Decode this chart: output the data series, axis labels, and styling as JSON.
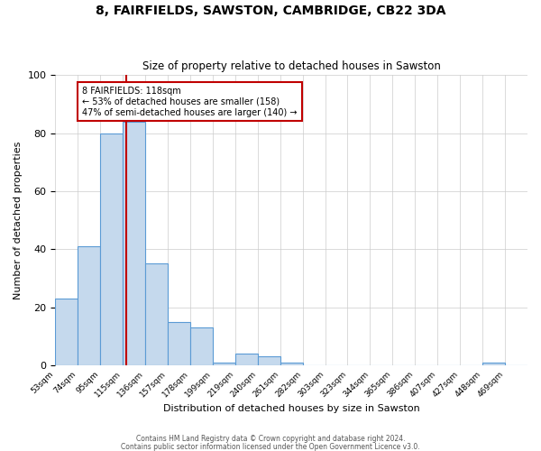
{
  "title": "8, FAIRFIELDS, SAWSTON, CAMBRIDGE, CB22 3DA",
  "subtitle": "Size of property relative to detached houses in Sawston",
  "xlabel": "Distribution of detached houses by size in Sawston",
  "ylabel": "Number of detached properties",
  "footnote1": "Contains HM Land Registry data © Crown copyright and database right 2024.",
  "footnote2": "Contains public sector information licensed under the Open Government Licence v3.0.",
  "bin_labels": [
    "53sqm",
    "74sqm",
    "95sqm",
    "115sqm",
    "136sqm",
    "157sqm",
    "178sqm",
    "199sqm",
    "219sqm",
    "240sqm",
    "261sqm",
    "282sqm",
    "303sqm",
    "323sqm",
    "344sqm",
    "365sqm",
    "386sqm",
    "407sqm",
    "427sqm",
    "448sqm",
    "469sqm"
  ],
  "bin_values": [
    23,
    41,
    80,
    84,
    35,
    15,
    13,
    1,
    4,
    3,
    1,
    0,
    0,
    0,
    0,
    0,
    0,
    0,
    0,
    1,
    0
  ],
  "bar_color": "#c5d9ed",
  "bar_edge_color": "#5b9bd5",
  "property_line_bin_index": 3,
  "property_line_color": "#c00000",
  "annotation_text": "8 FAIRFIELDS: 118sqm\n← 53% of detached houses are smaller (158)\n47% of semi-detached houses are larger (140) →",
  "annotation_box_color": "#ffffff",
  "annotation_box_edge": "#c00000",
  "ylim": [
    0,
    100
  ],
  "background_color": "#ffffff",
  "grid_color": "#cccccc",
  "fig_bg_color": "#ffffff"
}
